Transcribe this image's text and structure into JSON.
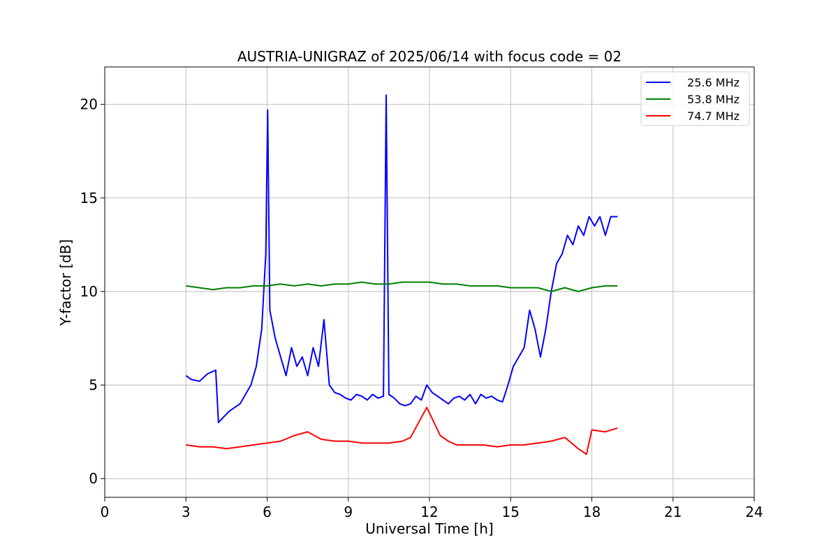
{
  "chart_data": {
    "type": "line",
    "title": "AUSTRIA-UNIGRAZ of 2025/06/14 with focus code = 02",
    "xlabel": "Universal Time [h]",
    "ylabel": "Y-factor [dB]",
    "xlim": [
      0,
      24
    ],
    "ylim": [
      -1.0,
      22.0
    ],
    "x_ticks": [
      0,
      3,
      6,
      9,
      12,
      15,
      18,
      21,
      24
    ],
    "x_tick_labels": [
      "0",
      "3",
      "6",
      "9",
      "12",
      "15",
      "18",
      "21",
      "24"
    ],
    "y_ticks": [
      0,
      5,
      10,
      15,
      20
    ],
    "y_tick_labels": [
      "0",
      "5",
      "10",
      "15",
      "20"
    ],
    "grid": true,
    "legend_position": "top-right",
    "series": [
      {
        "name": "25.6 MHz",
        "color": "#0000ff",
        "x": [
          3.0,
          3.2,
          3.5,
          3.8,
          4.1,
          4.2,
          4.4,
          4.6,
          4.8,
          5.0,
          5.2,
          5.4,
          5.6,
          5.8,
          5.95,
          6.02,
          6.1,
          6.3,
          6.5,
          6.7,
          6.9,
          7.1,
          7.3,
          7.5,
          7.7,
          7.9,
          8.1,
          8.3,
          8.5,
          8.7,
          8.9,
          9.1,
          9.3,
          9.5,
          9.7,
          9.9,
          10.1,
          10.3,
          10.4,
          10.5,
          10.7,
          10.9,
          11.1,
          11.3,
          11.5,
          11.7,
          11.9,
          12.1,
          12.3,
          12.5,
          12.7,
          12.9,
          13.1,
          13.3,
          13.5,
          13.7,
          13.9,
          14.1,
          14.3,
          14.5,
          14.7,
          14.9,
          15.1,
          15.3,
          15.5,
          15.7,
          15.9,
          16.1,
          16.3,
          16.5,
          16.7,
          16.9,
          17.1,
          17.3,
          17.5,
          17.7,
          17.9,
          18.1,
          18.3,
          18.5,
          18.7,
          18.95
        ],
        "y": [
          5.5,
          5.3,
          5.2,
          5.6,
          5.8,
          3.0,
          3.3,
          3.6,
          3.8,
          4.0,
          4.5,
          5.0,
          6.0,
          8.0,
          12.0,
          19.7,
          9.0,
          7.5,
          6.5,
          5.5,
          7.0,
          6.0,
          6.5,
          5.5,
          7.0,
          6.0,
          8.5,
          5.0,
          4.6,
          4.5,
          4.3,
          4.2,
          4.5,
          4.4,
          4.2,
          4.5,
          4.3,
          4.4,
          20.5,
          4.5,
          4.3,
          4.0,
          3.9,
          4.0,
          4.4,
          4.2,
          5.0,
          4.6,
          4.4,
          4.2,
          4.0,
          4.3,
          4.4,
          4.2,
          4.5,
          4.0,
          4.5,
          4.3,
          4.4,
          4.2,
          4.1,
          5.0,
          6.0,
          6.5,
          7.0,
          9.0,
          8.0,
          6.5,
          8.0,
          10.0,
          11.5,
          12.0,
          13.0,
          12.5,
          13.5,
          13.0,
          14.0,
          13.5,
          14.0,
          13.0,
          14.0,
          14.0
        ]
      },
      {
        "name": "53.8 MHz",
        "color": "#008000",
        "x": [
          3.0,
          3.5,
          4.0,
          4.5,
          5.0,
          5.5,
          6.0,
          6.5,
          7.0,
          7.5,
          8.0,
          8.5,
          9.0,
          9.5,
          10.0,
          10.5,
          11.0,
          11.5,
          12.0,
          12.5,
          13.0,
          13.5,
          14.0,
          14.5,
          15.0,
          15.5,
          16.0,
          16.5,
          17.0,
          17.5,
          18.0,
          18.5,
          18.95
        ],
        "y": [
          10.3,
          10.2,
          10.1,
          10.2,
          10.2,
          10.3,
          10.3,
          10.4,
          10.3,
          10.4,
          10.3,
          10.4,
          10.4,
          10.5,
          10.4,
          10.4,
          10.5,
          10.5,
          10.5,
          10.4,
          10.4,
          10.3,
          10.3,
          10.3,
          10.2,
          10.2,
          10.2,
          10.0,
          10.2,
          10.0,
          10.2,
          10.3,
          10.3
        ]
      },
      {
        "name": "74.7 MHz",
        "color": "#ff0000",
        "x": [
          3.0,
          3.5,
          4.0,
          4.5,
          5.0,
          5.5,
          6.0,
          6.5,
          7.0,
          7.5,
          8.0,
          8.5,
          9.0,
          9.5,
          10.0,
          10.5,
          11.0,
          11.3,
          11.6,
          11.9,
          12.1,
          12.4,
          12.7,
          13.0,
          13.5,
          14.0,
          14.5,
          15.0,
          15.5,
          16.0,
          16.5,
          17.0,
          17.5,
          17.8,
          18.0,
          18.5,
          18.95
        ],
        "y": [
          1.8,
          1.7,
          1.7,
          1.6,
          1.7,
          1.8,
          1.9,
          2.0,
          2.3,
          2.5,
          2.1,
          2.0,
          2.0,
          1.9,
          1.9,
          1.9,
          2.0,
          2.2,
          3.0,
          3.8,
          3.2,
          2.3,
          2.0,
          1.8,
          1.8,
          1.8,
          1.7,
          1.8,
          1.8,
          1.9,
          2.0,
          2.2,
          1.6,
          1.3,
          2.6,
          2.5,
          2.7
        ]
      }
    ]
  }
}
